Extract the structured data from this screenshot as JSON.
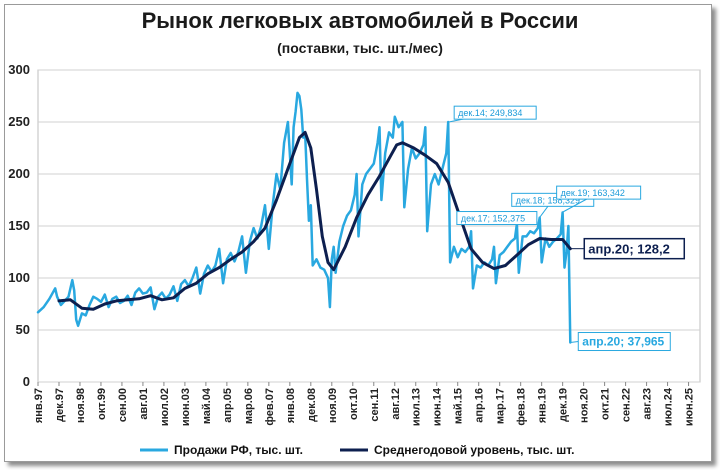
{
  "title": "Рынок легковых автомобилей в России",
  "subtitle": "(поставки,  тыс. шт./мес)",
  "chart_data": {
    "type": "line",
    "ylim": [
      0,
      300
    ],
    "yticks": [
      0,
      50,
      100,
      150,
      200,
      250,
      300
    ],
    "xlim": [
      "1997-01",
      "2025-12"
    ],
    "xticks": [
      "янв.97",
      "дек.97",
      "ноя.98",
      "окт.99",
      "сен.00",
      "авг.01",
      "июл.02",
      "июн.03",
      "май.04",
      "апр.05",
      "мар.06",
      "фев.07",
      "янв.08",
      "дек.08",
      "ноя.09",
      "окт.10",
      "сен.11",
      "авг.12",
      "июл.13",
      "июн.14",
      "май.15",
      "апр.16",
      "мар.17",
      "фев.18",
      "янв.19",
      "дек.19",
      "ноя.20",
      "окт.21",
      "сен.22",
      "авг.23",
      "июл.24",
      "июн.25"
    ],
    "grid": true,
    "legend_position": "bottom",
    "series": [
      {
        "name": "Продажи РФ, тыс. шт.",
        "color": "#29a8e0",
        "points": [
          [
            "1997-01",
            67
          ],
          [
            "1997-04",
            72
          ],
          [
            "1997-07",
            80
          ],
          [
            "1997-10",
            90
          ],
          [
            "1997-11",
            82
          ],
          [
            "1998-01",
            74
          ],
          [
            "1998-03",
            78
          ],
          [
            "1998-05",
            82
          ],
          [
            "1998-07",
            98
          ],
          [
            "1998-08",
            88
          ],
          [
            "1998-09",
            60
          ],
          [
            "1998-10",
            54
          ],
          [
            "1998-12",
            66
          ],
          [
            "1999-02",
            64
          ],
          [
            "1999-04",
            74
          ],
          [
            "1999-06",
            82
          ],
          [
            "1999-08",
            80
          ],
          [
            "1999-10",
            77
          ],
          [
            "1999-12",
            84
          ],
          [
            "2000-02",
            72
          ],
          [
            "2000-04",
            80
          ],
          [
            "2000-06",
            82
          ],
          [
            "2000-08",
            76
          ],
          [
            "2000-10",
            78
          ],
          [
            "2000-12",
            83
          ],
          [
            "2001-02",
            74
          ],
          [
            "2001-04",
            86
          ],
          [
            "2001-06",
            90
          ],
          [
            "2001-08",
            85
          ],
          [
            "2001-10",
            86
          ],
          [
            "2001-12",
            91
          ],
          [
            "2002-02",
            70
          ],
          [
            "2002-04",
            82
          ],
          [
            "2002-06",
            86
          ],
          [
            "2002-08",
            80
          ],
          [
            "2002-10",
            84
          ],
          [
            "2002-12",
            92
          ],
          [
            "2003-02",
            78
          ],
          [
            "2003-04",
            94
          ],
          [
            "2003-06",
            98
          ],
          [
            "2003-08",
            92
          ],
          [
            "2003-10",
            100
          ],
          [
            "2003-12",
            110
          ],
          [
            "2004-02",
            85
          ],
          [
            "2004-04",
            104
          ],
          [
            "2004-06",
            112
          ],
          [
            "2004-08",
            106
          ],
          [
            "2004-10",
            112
          ],
          [
            "2004-12",
            128
          ],
          [
            "2005-02",
            95
          ],
          [
            "2005-04",
            118
          ],
          [
            "2005-06",
            124
          ],
          [
            "2005-08",
            116
          ],
          [
            "2005-10",
            125
          ],
          [
            "2005-12",
            140
          ],
          [
            "2006-02",
            105
          ],
          [
            "2006-04",
            135
          ],
          [
            "2006-06",
            148
          ],
          [
            "2006-08",
            138
          ],
          [
            "2006-10",
            150
          ],
          [
            "2006-12",
            170
          ],
          [
            "2007-02",
            128
          ],
          [
            "2007-04",
            170
          ],
          [
            "2007-06",
            200
          ],
          [
            "2007-08",
            185
          ],
          [
            "2007-10",
            230
          ],
          [
            "2007-12",
            250
          ],
          [
            "2008-02",
            190
          ],
          [
            "2008-03",
            245
          ],
          [
            "2008-04",
            260
          ],
          [
            "2008-05",
            278
          ],
          [
            "2008-06",
            275
          ],
          [
            "2008-07",
            262
          ],
          [
            "2008-08",
            235
          ],
          [
            "2008-09",
            240
          ],
          [
            "2008-10",
            195
          ],
          [
            "2008-11",
            155
          ],
          [
            "2008-12",
            170
          ],
          [
            "2009-01",
            112
          ],
          [
            "2009-03",
            118
          ],
          [
            "2009-05",
            110
          ],
          [
            "2009-07",
            108
          ],
          [
            "2009-09",
            100
          ],
          [
            "2009-10",
            72
          ],
          [
            "2009-11",
            118
          ],
          [
            "2009-12",
            130
          ],
          [
            "2010-01",
            105
          ],
          [
            "2010-03",
            135
          ],
          [
            "2010-05",
            150
          ],
          [
            "2010-07",
            160
          ],
          [
            "2010-09",
            165
          ],
          [
            "2010-11",
            180
          ],
          [
            "2010-12",
            200
          ],
          [
            "2011-01",
            140
          ],
          [
            "2011-03",
            190
          ],
          [
            "2011-05",
            200
          ],
          [
            "2011-07",
            205
          ],
          [
            "2011-09",
            210
          ],
          [
            "2011-11",
            230
          ],
          [
            "2011-12",
            245
          ],
          [
            "2012-01",
            175
          ],
          [
            "2012-03",
            220
          ],
          [
            "2012-05",
            240
          ],
          [
            "2012-07",
            235
          ],
          [
            "2012-08",
            255
          ],
          [
            "2012-10",
            245
          ],
          [
            "2012-12",
            250
          ],
          [
            "2013-01",
            168
          ],
          [
            "2013-03",
            205
          ],
          [
            "2013-05",
            225
          ],
          [
            "2013-07",
            215
          ],
          [
            "2013-09",
            220
          ],
          [
            "2013-11",
            228
          ],
          [
            "2013-12",
            245
          ],
          [
            "2014-01",
            145
          ],
          [
            "2014-03",
            190
          ],
          [
            "2014-05",
            200
          ],
          [
            "2014-07",
            190
          ],
          [
            "2014-09",
            205
          ],
          [
            "2014-11",
            220
          ],
          [
            "2014-12",
            250
          ],
          [
            "2015-01",
            115
          ],
          [
            "2015-03",
            130
          ],
          [
            "2015-05",
            120
          ],
          [
            "2015-07",
            128
          ],
          [
            "2015-09",
            125
          ],
          [
            "2015-11",
            130
          ],
          [
            "2015-12",
            145
          ],
          [
            "2016-01",
            90
          ],
          [
            "2016-03",
            112
          ],
          [
            "2016-05",
            110
          ],
          [
            "2016-07",
            115
          ],
          [
            "2016-09",
            112
          ],
          [
            "2016-11",
            118
          ],
          [
            "2016-12",
            130
          ],
          [
            "2017-01",
            95
          ],
          [
            "2017-03",
            122
          ],
          [
            "2017-05",
            125
          ],
          [
            "2017-07",
            130
          ],
          [
            "2017-09",
            135
          ],
          [
            "2017-11",
            138
          ],
          [
            "2017-12",
            152
          ],
          [
            "2018-01",
            105
          ],
          [
            "2018-03",
            140
          ],
          [
            "2018-05",
            140
          ],
          [
            "2018-07",
            145
          ],
          [
            "2018-09",
            143
          ],
          [
            "2018-11",
            148
          ],
          [
            "2018-12",
            158
          ],
          [
            "2019-01",
            115
          ],
          [
            "2019-03",
            138
          ],
          [
            "2019-05",
            130
          ],
          [
            "2019-07",
            135
          ],
          [
            "2019-09",
            138
          ],
          [
            "2019-11",
            142
          ],
          [
            "2019-12",
            163
          ],
          [
            "2020-01",
            110
          ],
          [
            "2020-02",
            125
          ],
          [
            "2020-03",
            150
          ],
          [
            "2020-04",
            37.965
          ]
        ]
      },
      {
        "name": "Среднегодовой уровень, тыс. шт.",
        "color": "#0d1f4f",
        "points": [
          [
            "1997-12",
            78
          ],
          [
            "1998-06",
            79
          ],
          [
            "1998-12",
            71
          ],
          [
            "1999-06",
            70
          ],
          [
            "1999-12",
            75
          ],
          [
            "2000-06",
            78
          ],
          [
            "2000-12",
            79
          ],
          [
            "2001-06",
            80
          ],
          [
            "2001-12",
            83
          ],
          [
            "2002-06",
            79
          ],
          [
            "2002-12",
            81
          ],
          [
            "2003-06",
            90
          ],
          [
            "2003-12",
            95
          ],
          [
            "2004-06",
            104
          ],
          [
            "2004-12",
            110
          ],
          [
            "2005-06",
            118
          ],
          [
            "2005-12",
            125
          ],
          [
            "2006-06",
            135
          ],
          [
            "2006-12",
            148
          ],
          [
            "2007-06",
            175
          ],
          [
            "2007-12",
            205
          ],
          [
            "2008-06",
            235
          ],
          [
            "2008-09",
            240
          ],
          [
            "2008-12",
            225
          ],
          [
            "2009-03",
            185
          ],
          [
            "2009-06",
            140
          ],
          [
            "2009-09",
            115
          ],
          [
            "2009-12",
            108
          ],
          [
            "2010-06",
            130
          ],
          [
            "2010-12",
            158
          ],
          [
            "2011-06",
            180
          ],
          [
            "2011-12",
            198
          ],
          [
            "2012-06",
            218
          ],
          [
            "2012-09",
            228
          ],
          [
            "2012-12",
            230
          ],
          [
            "2013-06",
            225
          ],
          [
            "2013-12",
            218
          ],
          [
            "2014-06",
            210
          ],
          [
            "2014-12",
            192
          ],
          [
            "2015-06",
            160
          ],
          [
            "2015-12",
            128
          ],
          [
            "2016-06",
            115
          ],
          [
            "2016-12",
            109
          ],
          [
            "2017-06",
            112
          ],
          [
            "2017-12",
            122
          ],
          [
            "2018-06",
            132
          ],
          [
            "2018-12",
            138
          ],
          [
            "2019-06",
            137
          ],
          [
            "2019-12",
            137
          ],
          [
            "2020-04",
            128.2
          ]
        ]
      }
    ],
    "annotations": [
      {
        "text": "дек.14; 249,834",
        "date": "2014-12",
        "value": 249.834
      },
      {
        "text": "дек.17; 152,375",
        "date": "2017-12",
        "value": 152.375
      },
      {
        "text": "дек.18; 158,329",
        "date": "2018-12",
        "value": 158.329
      },
      {
        "text": "дек.19; 163,342",
        "date": "2019-12",
        "value": 163.342
      },
      {
        "text": "апр.20;  128,2",
        "date": "2020-04",
        "value": 128.2,
        "style": "dark"
      },
      {
        "text": "апр.20; 37,965",
        "date": "2020-04",
        "value": 37.965,
        "style": "light"
      }
    ]
  }
}
